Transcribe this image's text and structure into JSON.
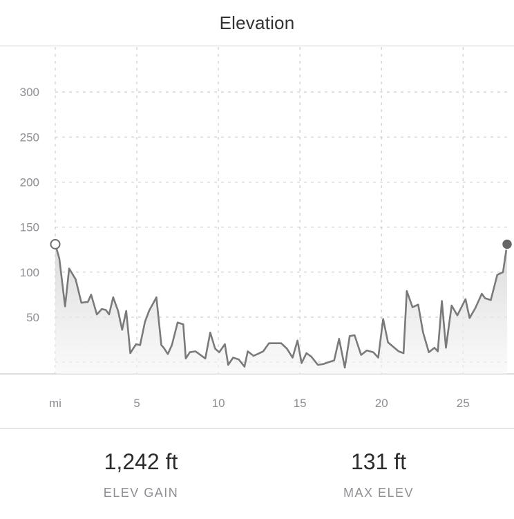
{
  "header": {
    "title": "Elevation"
  },
  "chart_data": {
    "type": "area",
    "title": "",
    "x_unit_label": "mi",
    "x_ticks": [
      5,
      10,
      15,
      20,
      25
    ],
    "y_ticks": [
      50,
      100,
      150,
      200,
      250,
      300
    ],
    "xlim": [
      0,
      27.7
    ],
    "ylim": [
      -13,
      350
    ],
    "grid": true,
    "line_color": "#7a7a7a",
    "start_marker": "hollow",
    "end_marker": "filled",
    "series": [
      {
        "x": [
          0.0,
          0.25,
          0.6,
          0.85,
          1.25,
          1.6,
          2.0,
          2.2,
          2.55,
          2.85,
          3.1,
          3.3,
          3.55,
          3.85,
          4.1,
          4.35,
          4.6,
          4.95,
          5.2,
          5.5,
          5.75,
          6.2,
          6.5,
          6.65,
          6.9,
          7.15,
          7.5,
          7.85,
          8.0,
          8.25,
          8.6,
          8.9,
          9.2,
          9.5,
          9.8,
          10.05,
          10.4,
          10.6,
          10.9,
          11.25,
          11.6,
          11.8,
          12.15,
          12.4,
          12.75,
          13.1,
          13.45,
          13.85,
          14.2,
          14.55,
          14.85,
          15.1,
          15.4,
          15.7,
          16.1,
          16.45,
          16.75,
          17.1,
          17.4,
          17.75,
          18.05,
          18.35,
          18.75,
          19.1,
          19.5,
          19.8,
          20.1,
          20.4,
          21.05,
          21.35,
          21.55,
          21.9,
          22.25,
          22.55,
          22.9,
          23.25,
          23.45,
          23.7,
          23.95,
          24.3,
          24.65,
          24.9,
          25.15,
          25.4,
          25.75,
          26.15,
          26.35,
          26.7,
          27.1,
          27.45,
          27.7
        ],
        "y": [
          131,
          115,
          62,
          104,
          92,
          66,
          67,
          75,
          53,
          59,
          58,
          53,
          72,
          57,
          36,
          57,
          10,
          20,
          19,
          45,
          57,
          72,
          19,
          16,
          9,
          19,
          44,
          42,
          4,
          11,
          12,
          8,
          4,
          33,
          15,
          11,
          20,
          -3,
          5,
          3,
          -5,
          12,
          7,
          9,
          12,
          21,
          21,
          21,
          15,
          5,
          24,
          -1,
          10,
          6,
          -3,
          -2,
          0,
          2,
          26,
          -6,
          29,
          30,
          8,
          13,
          11,
          5,
          48,
          22,
          12,
          10,
          79,
          61,
          64,
          33,
          11,
          16,
          12,
          68,
          16,
          63,
          52,
          61,
          70,
          49,
          60,
          76,
          71,
          69,
          97,
          100,
          131
        ]
      }
    ]
  },
  "stats": [
    {
      "value": "1,242 ft",
      "label": "ELEV GAIN"
    },
    {
      "value": "131 ft",
      "label": "MAX ELEV"
    }
  ]
}
